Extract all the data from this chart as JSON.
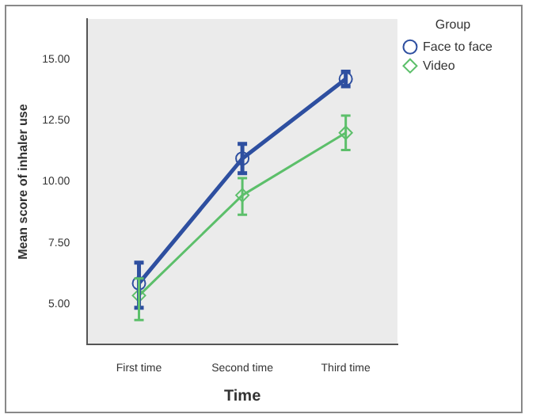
{
  "chart_data": {
    "type": "line",
    "xlabel": "Time",
    "ylabel": "Mean score of inhaler use",
    "legend_title": "Group",
    "legend": "top right",
    "categories": [
      "First time",
      "Second time",
      "Third time"
    ],
    "series": [
      {
        "name": "Face to face",
        "color": "#2e4fa0",
        "marker": "circle",
        "values": [
          5.85,
          10.95,
          14.2
        ],
        "errors": [
          [
            4.85,
            6.7
          ],
          [
            10.35,
            11.55
          ],
          [
            13.9,
            14.5
          ]
        ]
      },
      {
        "name": "Video",
        "color": "#5cbf6a",
        "marker": "diamond",
        "values": [
          5.35,
          9.45,
          12.0
        ],
        "errors": [
          [
            4.35,
            6.05
          ],
          [
            8.65,
            10.15
          ],
          [
            11.3,
            12.7
          ]
        ]
      }
    ],
    "ylim": [
      3.35,
      16.65
    ],
    "yticks": [
      {
        "value": 5,
        "label": "5.00"
      },
      {
        "value": 7.5,
        "label": "7.50"
      },
      {
        "value": 10,
        "label": "10.00"
      },
      {
        "value": 12.5,
        "label": "12.50"
      },
      {
        "value": 15,
        "label": "15.00"
      }
    ],
    "grid": false
  }
}
